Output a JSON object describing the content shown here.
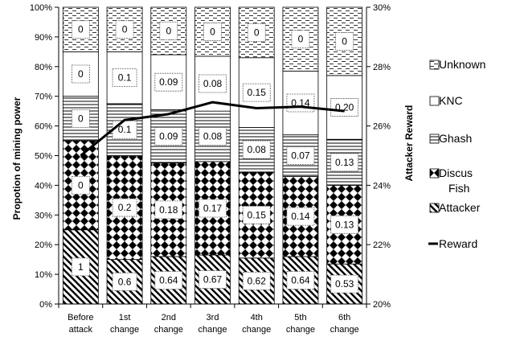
{
  "chart_data": {
    "type": "bar",
    "stacked": true,
    "percent_stacked": true,
    "categories": [
      "Before attack",
      "1st change",
      "2nd change",
      "3rd change",
      "4th change",
      "5th change",
      "6th change"
    ],
    "category_lines": [
      [
        "Before",
        "attack"
      ],
      [
        "1st",
        "change"
      ],
      [
        "2nd",
        "change"
      ],
      [
        "3rd",
        "change"
      ],
      [
        "4th",
        "change"
      ],
      [
        "5th",
        "change"
      ],
      [
        "6th",
        "change"
      ]
    ],
    "series": [
      {
        "name": "Attacker",
        "pattern": "diag",
        "values": [
          25,
          15,
          16,
          16.5,
          15.5,
          16,
          13.5
        ],
        "labels": [
          "1",
          "0.6",
          "0.64",
          "0.67",
          "0.62",
          "0.64",
          "0.53"
        ]
      },
      {
        "name": "Discus Fish",
        "pattern": "diamond",
        "values": [
          30,
          35,
          31.5,
          31.5,
          29,
          27,
          26.5
        ],
        "labels": [
          "0",
          "0.2",
          "0.18",
          "0.17",
          "0.15",
          "0.14",
          "0.13"
        ]
      },
      {
        "name": "Ghash",
        "pattern": "hlines",
        "values": [
          15,
          17.5,
          18,
          17,
          15,
          14,
          15.5
        ],
        "labels": [
          "0",
          "0.1",
          "0.09",
          "0.08",
          "0.08",
          "0.07",
          "0.13"
        ]
      },
      {
        "name": "KNC",
        "pattern": "plain",
        "values": [
          15,
          17.5,
          18.5,
          18.5,
          23.5,
          21.5,
          21.5
        ],
        "labels": [
          "0",
          "0.1",
          "0.09",
          "0.08",
          "0.15",
          "0.14",
          "0.20"
        ]
      },
      {
        "name": "Unknown",
        "pattern": "dashes",
        "values": [
          15,
          15,
          16,
          16.5,
          17,
          21.5,
          23
        ],
        "labels": [
          "0",
          "0",
          "0",
          "0",
          "0",
          "0",
          "0"
        ]
      }
    ],
    "line_series": {
      "name": "Reward",
      "axis": "right",
      "values": [
        25,
        26.2,
        26.4,
        26.8,
        26.6,
        26.65,
        26.5
      ]
    },
    "ylabel": "Propotion of mining power",
    "y2label": "Attacker Reward",
    "yticks": [
      "0%",
      "10%",
      "20%",
      "30%",
      "40%",
      "50%",
      "60%",
      "70%",
      "80%",
      "90%",
      "100%"
    ],
    "y2ticks": [
      "20%",
      "22%",
      "24%",
      "26%",
      "28%",
      "30%"
    ],
    "ylim": [
      0,
      100
    ],
    "y2lim": [
      20,
      30
    ],
    "legend": {
      "position": "right",
      "entries": [
        {
          "lines": [
            "Unknown"
          ],
          "pattern": "dashes"
        },
        {
          "lines": [
            "KNC"
          ],
          "pattern": "plain"
        },
        {
          "lines": [
            "Ghash"
          ],
          "pattern": "hlines"
        },
        {
          "lines": [
            "Discus",
            "Fish"
          ],
          "pattern": "diamond"
        },
        {
          "lines": [
            "Attacker"
          ],
          "pattern": "diag"
        },
        {
          "lines": [
            "Reward"
          ],
          "pattern": "line"
        }
      ]
    },
    "grid": false
  }
}
